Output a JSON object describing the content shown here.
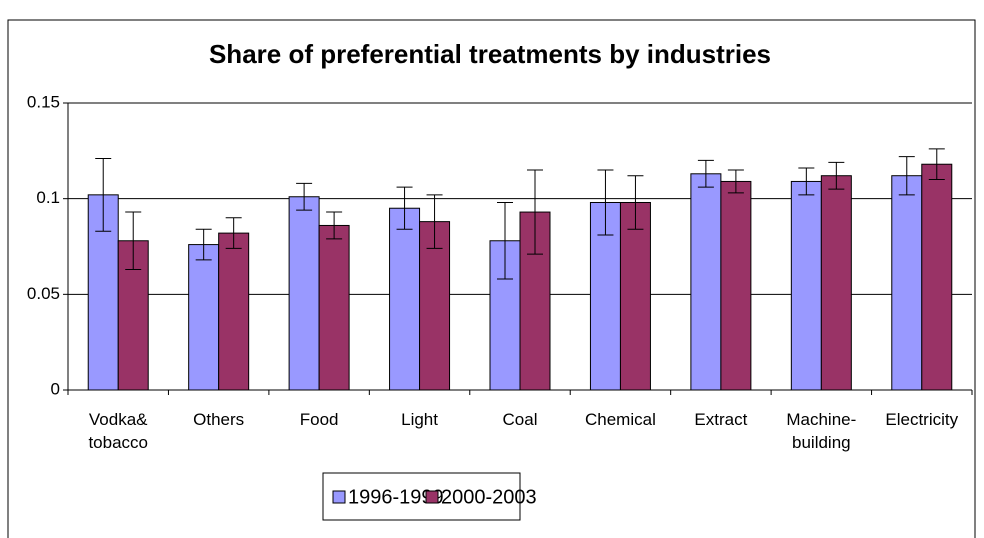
{
  "chart_data": {
    "type": "bar",
    "title": "Share of preferential treatments by industries",
    "categories": [
      "Vodka&\ntobacco",
      "Others",
      "Food",
      "Light",
      "Coal",
      "Chemical",
      "Extract",
      "Machine-\nbuilding",
      "Electricity"
    ],
    "series": [
      {
        "name": "1996-1999",
        "color": "#9999ff",
        "values": [
          0.102,
          0.076,
          0.101,
          0.095,
          0.078,
          0.098,
          0.113,
          0.109,
          0.112
        ],
        "errors": [
          0.019,
          0.008,
          0.007,
          0.011,
          0.02,
          0.017,
          0.007,
          0.007,
          0.01
        ]
      },
      {
        "name": "2000-2003",
        "color": "#993366",
        "values": [
          0.078,
          0.082,
          0.086,
          0.088,
          0.093,
          0.098,
          0.109,
          0.112,
          0.118
        ],
        "errors": [
          0.015,
          0.008,
          0.007,
          0.014,
          0.022,
          0.014,
          0.006,
          0.007,
          0.008
        ]
      }
    ],
    "ylim": [
      0,
      0.15
    ],
    "yticks": [
      0,
      0.05,
      0.1,
      0.15
    ],
    "grid": true
  }
}
